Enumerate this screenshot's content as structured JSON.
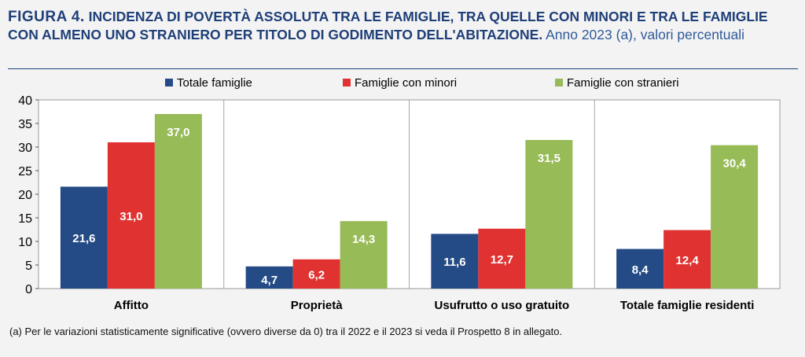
{
  "title": {
    "figure_label": "FIGURA 4.",
    "main": "INCIDENZA DI POVERTÀ ASSOLUTA TRA LE FAMIGLIE, TRA QUELLE CON MINORI E TRA LE FAMIGLIE CON ALMENO UNO STRANIERO PER TITOLO DI GODIMENTO DELL'ABITAZIONE.",
    "subtitle": "Anno 2023 (a), valori percentuali"
  },
  "note": "(a) Per le variazioni statisticamente significative (ovvero diverse da 0) tra il 2022 e il 2023 si veda il Prospetto 8 in allegato.",
  "colors": {
    "series": [
      "#244b85",
      "#e03331",
      "#97bb56"
    ],
    "title": "#1f3f78",
    "background": "#f3f3f3"
  },
  "chart_data": {
    "type": "bar",
    "categories": [
      "Affitto",
      "Proprietà",
      "Usufrutto o uso gratuito",
      "Totale famiglie residenti"
    ],
    "series": [
      {
        "name": "Totale famiglie",
        "values": [
          21.6,
          4.7,
          11.6,
          8.4
        ],
        "labels": [
          "21,6",
          "4,7",
          "11,6",
          "8,4"
        ]
      },
      {
        "name": "Famiglie con minori",
        "values": [
          31.0,
          6.2,
          12.7,
          12.4
        ],
        "labels": [
          "31,0",
          "6,2",
          "12,7",
          "12,4"
        ]
      },
      {
        "name": "Famiglie con stranieri",
        "values": [
          37.0,
          14.3,
          31.5,
          30.4
        ],
        "labels": [
          "37,0",
          "14,3",
          "31,5",
          "30,4"
        ]
      }
    ],
    "ylim": [
      0,
      40
    ],
    "yticks": [
      0,
      5,
      10,
      15,
      20,
      25,
      30,
      35,
      40
    ],
    "grid": false,
    "legend": "top"
  }
}
